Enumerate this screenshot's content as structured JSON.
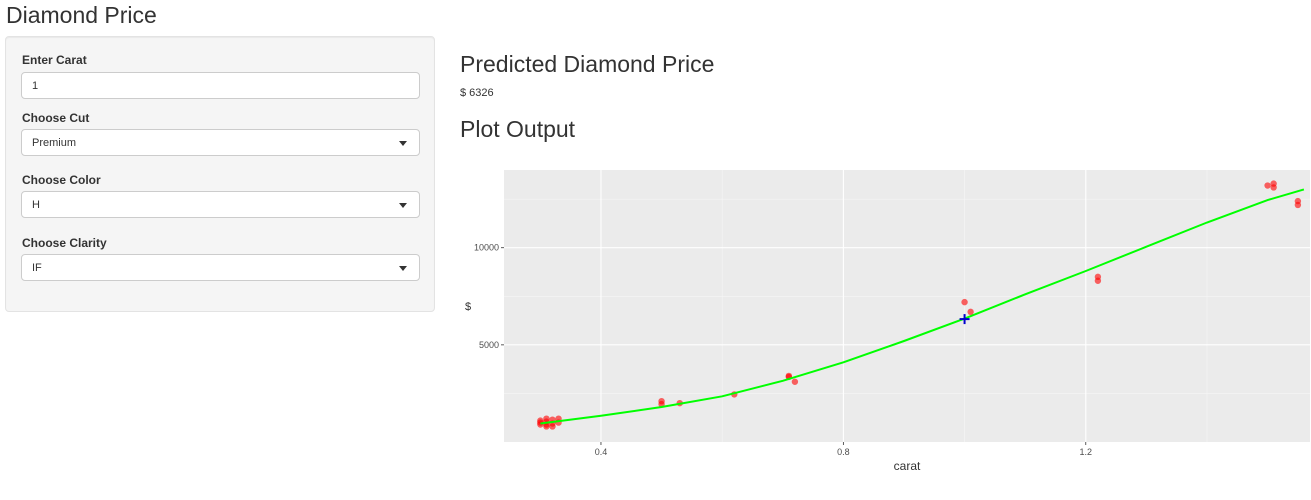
{
  "app": {
    "title": "Diamond Price"
  },
  "sidebar": {
    "carat": {
      "label": "Enter Carat",
      "value": "1"
    },
    "cut": {
      "label": "Choose Cut",
      "selected": "Premium"
    },
    "color": {
      "label": "Choose Color",
      "selected": "H"
    },
    "clarity": {
      "label": "Choose Clarity",
      "selected": "IF"
    }
  },
  "main": {
    "prediction_heading": "Predicted Diamond Price",
    "prediction_value": "$ 6326",
    "plot_heading": "Plot Output"
  },
  "chart_data": {
    "type": "scatter",
    "title": "",
    "xlabel": "carat",
    "ylabel": "$",
    "xlim": [
      0.24,
      1.57
    ],
    "ylim": [
      0,
      14000
    ],
    "x_ticks": [
      {
        "value": 0.4,
        "label": "0.4"
      },
      {
        "value": 0.8,
        "label": "0.8"
      },
      {
        "value": 1.2,
        "label": "1.2"
      }
    ],
    "y_ticks": [
      {
        "value": 5000,
        "label": "5000"
      },
      {
        "value": 10000,
        "label": "10000"
      }
    ],
    "grid": true,
    "colors": {
      "points": "#ff0000",
      "fit": "#00ff00",
      "prediction": "#0000cc",
      "panel": "#ebebeb"
    },
    "series": [
      {
        "kind": "points",
        "x": [
          0.3,
          0.3,
          0.31,
          0.31,
          0.31,
          0.32,
          0.32,
          0.32,
          0.33,
          0.33,
          0.3,
          0.31,
          0.5,
          0.5,
          0.53,
          0.62,
          0.71,
          0.71,
          0.72,
          1.0,
          1.01,
          1.22,
          1.22,
          1.5,
          1.51,
          1.51,
          1.55,
          1.55
        ],
        "y": [
          900,
          1100,
          800,
          1050,
          1200,
          950,
          1150,
          800,
          1000,
          1200,
          1000,
          900,
          1950,
          2100,
          2000,
          2450,
          3400,
          3350,
          3100,
          7200,
          6700,
          8500,
          8300,
          13200,
          13100,
          13300,
          12200,
          12400
        ]
      },
      {
        "kind": "fit",
        "x": [
          0.3,
          0.4,
          0.5,
          0.6,
          0.7,
          0.8,
          0.9,
          1.0,
          1.1,
          1.2,
          1.3,
          1.4,
          1.5,
          1.56
        ],
        "y": [
          950,
          1350,
          1800,
          2350,
          3150,
          4100,
          5200,
          6350,
          7600,
          8800,
          10050,
          11300,
          12450,
          13000
        ]
      },
      {
        "kind": "prediction",
        "x": [
          1.0
        ],
        "y": [
          6326
        ]
      }
    ]
  }
}
